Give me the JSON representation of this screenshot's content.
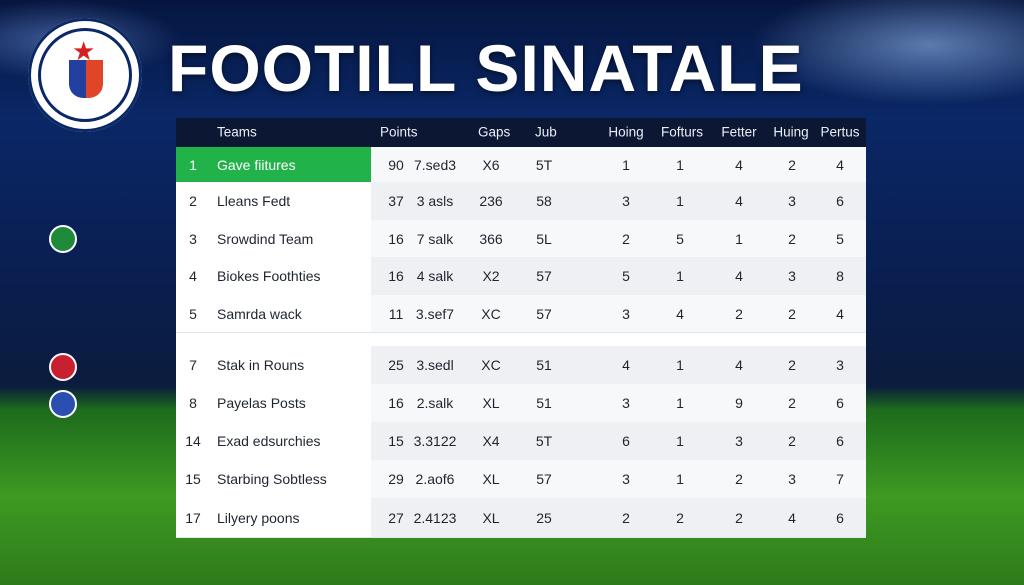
{
  "header": {
    "title": "FOOTILL SINATALE"
  },
  "table": {
    "columns": [
      "Teams",
      "Points",
      "Gaps",
      "Jub",
      "Hoing",
      "Fofturs",
      "Fetter",
      "Huing",
      "Pertus"
    ],
    "rows": [
      [
        "1",
        "Gave fiitures",
        "90",
        "7.sed3",
        "X6",
        "5T",
        "1",
        "1",
        "4",
        "2",
        "4"
      ],
      [
        "2",
        "Lleans Fedt",
        "37",
        "3 asls",
        "236",
        "58",
        "3",
        "1",
        "4",
        "3",
        "6"
      ],
      [
        "3",
        "Srowdind Team",
        "16",
        "7 salk",
        "366",
        "5L",
        "2",
        "5",
        "1",
        "2",
        "5"
      ],
      [
        "4",
        "Biokes Foothties",
        "16",
        "4 salk",
        "X2",
        "57",
        "5",
        "1",
        "4",
        "3",
        "8"
      ],
      [
        "5",
        "Samrda wack",
        "11",
        "3.sef7",
        "XC",
        "57",
        "3",
        "4",
        "2",
        "2",
        "4"
      ],
      [
        "7",
        "Stak in Rouns",
        "25",
        "3.sedl",
        "XC",
        "51",
        "4",
        "1",
        "4",
        "2",
        "3"
      ],
      [
        "8",
        "Payelas Posts",
        "16",
        "2.salk",
        "XL",
        "51",
        "3",
        "1",
        "9",
        "2",
        "6"
      ],
      [
        "14",
        "Exad edsurchies",
        "15",
        "3.3122",
        "X4",
        "5T",
        "6",
        "1",
        "3",
        "2",
        "6"
      ],
      [
        "15",
        "Starbing Sobtless",
        "29",
        "2.aof6",
        "XL",
        "57",
        "3",
        "1",
        "2",
        "3",
        "7"
      ],
      [
        "17",
        "Lilyery poons",
        "27",
        "2.4123",
        "XL",
        "25",
        "2",
        "2",
        "2",
        "4",
        "6"
      ]
    ]
  }
}
